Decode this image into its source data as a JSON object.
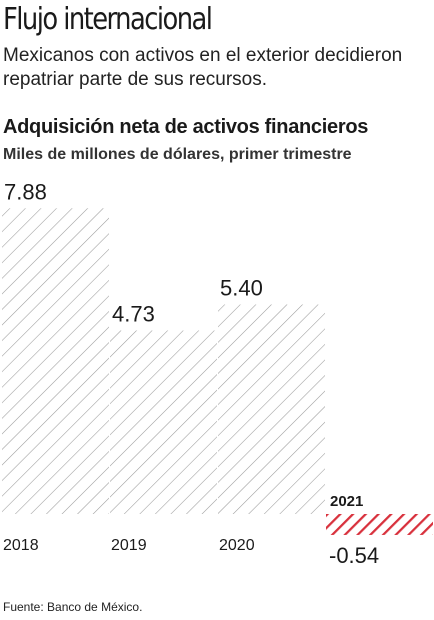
{
  "header": {
    "title": "Flujo internacional",
    "subtitle": "Mexicanos con activos en el exterior decidieron repatriar parte de sus recursos."
  },
  "chart_data": {
    "type": "bar",
    "title": "Adquisición neta de activos financieros",
    "subtitle": "Miles de millones de dólares, primer trimestre",
    "categories": [
      "2018",
      "2019",
      "2020",
      "2021"
    ],
    "values": [
      7.88,
      4.73,
      5.4,
      -0.54
    ],
    "value_labels": [
      "7.88",
      "4.73",
      "5.40",
      "-0.54"
    ],
    "highlight_category": "2021",
    "colors": {
      "bars": "#999999",
      "highlight": "#d8303c",
      "text": "#1a1a1a"
    },
    "grid": false,
    "legend": "none"
  },
  "footer": {
    "source": "Fuente: Banco de México."
  }
}
